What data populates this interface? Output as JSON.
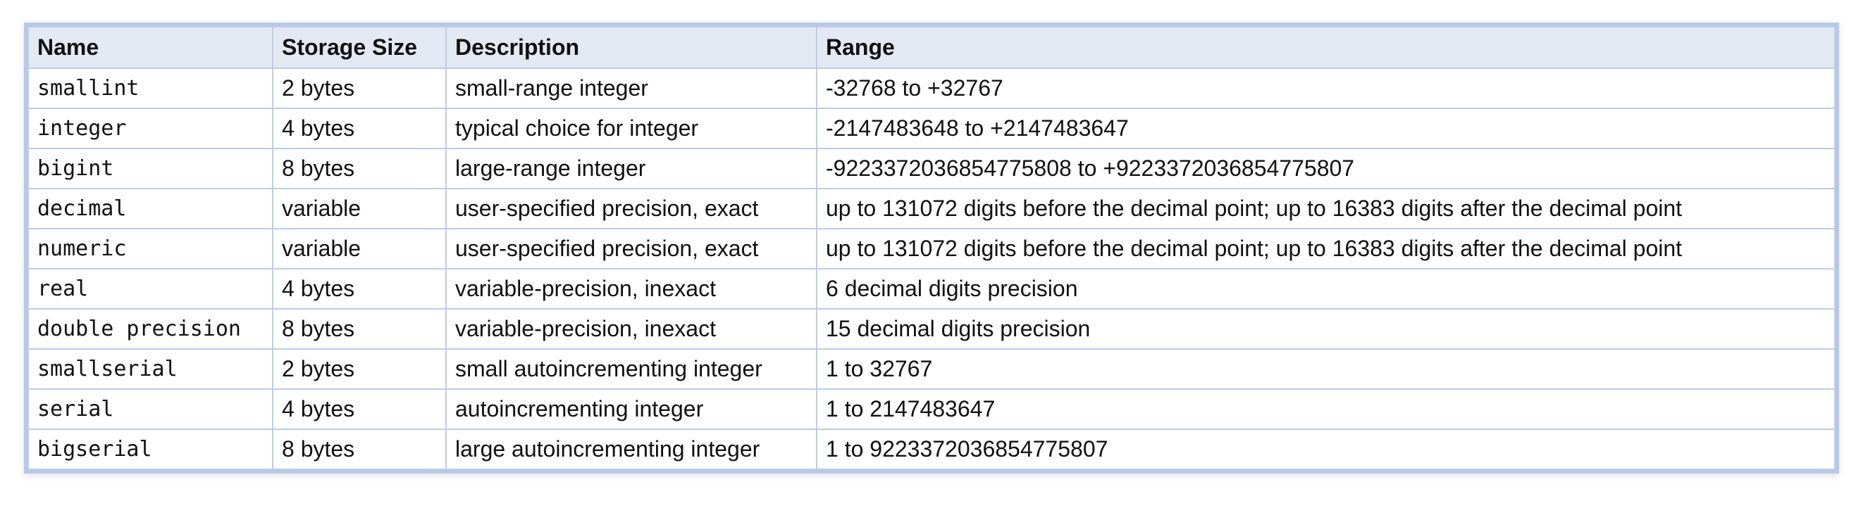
{
  "table": {
    "headers": [
      "Name",
      "Storage Size",
      "Description",
      "Range"
    ],
    "rows": [
      {
        "name": "smallint",
        "storage": "2 bytes",
        "description": "small-range integer",
        "range": "-32768 to +32767"
      },
      {
        "name": "integer",
        "storage": "4 bytes",
        "description": "typical choice for integer",
        "range": "-2147483648 to +2147483647"
      },
      {
        "name": "bigint",
        "storage": "8 bytes",
        "description": "large-range integer",
        "range": "-9223372036854775808 to +9223372036854775807"
      },
      {
        "name": "decimal",
        "storage": "variable",
        "description": "user-specified precision, exact",
        "range": "up to 131072 digits before the decimal point; up to 16383 digits after the decimal point"
      },
      {
        "name": "numeric",
        "storage": "variable",
        "description": "user-specified precision, exact",
        "range": "up to 131072 digits before the decimal point; up to 16383 digits after the decimal point"
      },
      {
        "name": "real",
        "storage": "4 bytes",
        "description": "variable-precision, inexact",
        "range": "6 decimal digits precision"
      },
      {
        "name": "double precision",
        "storage": "8 bytes",
        "description": "variable-precision, inexact",
        "range": "15 decimal digits precision"
      },
      {
        "name": "smallserial",
        "storage": "2 bytes",
        "description": "small autoincrementing integer",
        "range": "1 to 32767"
      },
      {
        "name": "serial",
        "storage": "4 bytes",
        "description": "autoincrementing integer",
        "range": "1 to 2147483647"
      },
      {
        "name": "bigserial",
        "storage": "8 bytes",
        "description": "large autoincrementing integer",
        "range": "1 to 9223372036854775807"
      }
    ]
  }
}
